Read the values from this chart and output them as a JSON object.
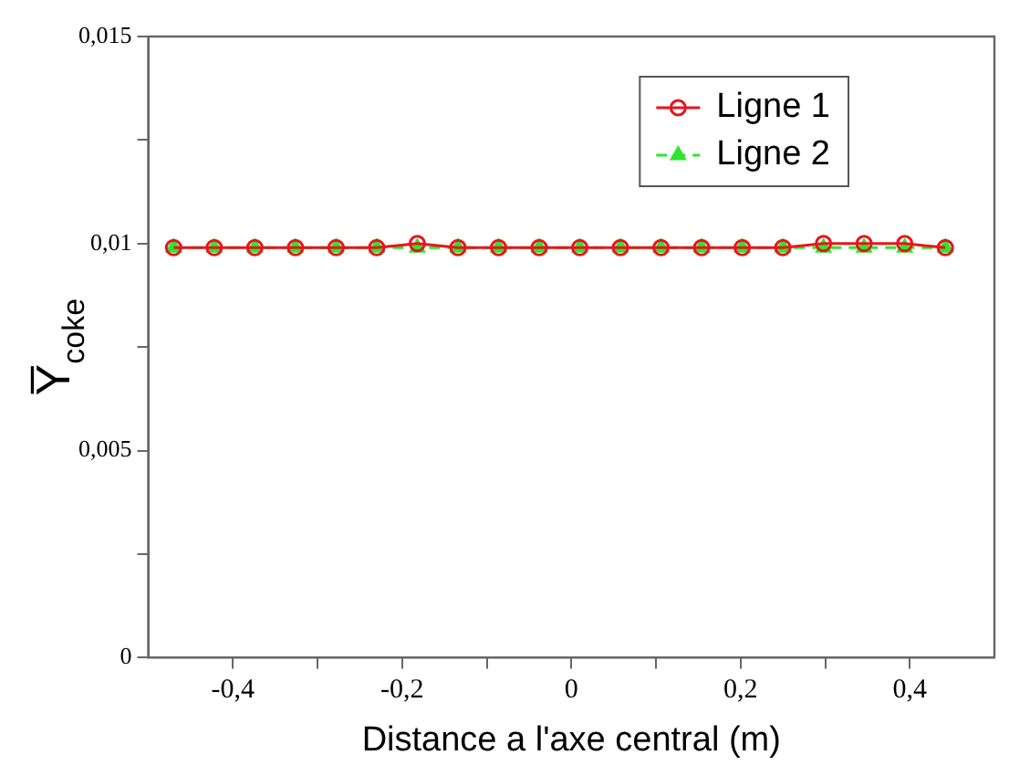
{
  "chart_data": {
    "type": "line",
    "xlabel": "Distance a l'axe central (m)",
    "ylabel": "Y̅$_{coke}$",
    "x": [
      -0.47,
      -0.422,
      -0.374,
      -0.326,
      -0.278,
      -0.23,
      -0.182,
      -0.134,
      -0.086,
      -0.038,
      0.01,
      0.058,
      0.106,
      0.154,
      0.202,
      0.25,
      0.298,
      0.346,
      0.394,
      0.442
    ],
    "series": [
      {
        "name": "Ligne 1",
        "color": "#e8141e",
        "marker": "circle",
        "values": [
          0.0099,
          0.0099,
          0.0099,
          0.0099,
          0.0099,
          0.0099,
          0.01,
          0.0099,
          0.0099,
          0.0099,
          0.0099,
          0.0099,
          0.0099,
          0.0099,
          0.0099,
          0.0099,
          0.01,
          0.01,
          0.01,
          0.0099
        ]
      },
      {
        "name": "Ligne 2",
        "color": "#2ee62e",
        "marker": "triangle",
        "line_style": "dashed",
        "values": [
          0.0099,
          0.0099,
          0.0099,
          0.0099,
          0.0099,
          0.0099,
          0.0099,
          0.0099,
          0.0099,
          0.0099,
          0.0099,
          0.0099,
          0.0099,
          0.0099,
          0.0099,
          0.0099,
          0.0099,
          0.0099,
          0.0099,
          0.0099
        ]
      }
    ],
    "xlim": [
      -0.5,
      0.5
    ],
    "xticks": [
      {
        "value": -0.4,
        "label": "-0,4"
      },
      {
        "value": -0.3,
        "label": null
      },
      {
        "value": -0.2,
        "label": "-0,2"
      },
      {
        "value": -0.1,
        "label": null
      },
      0,
      {
        "value": 0.1,
        "label": null
      },
      {
        "value": 0.2,
        "label": "0,2"
      },
      {
        "value": 0.3,
        "label": null
      },
      {
        "value": 0.4,
        "label": "0,4"
      }
    ],
    "ylim": [
      0,
      0.015
    ],
    "yticks": [
      0,
      {
        "value": 0.0025,
        "label": null
      },
      {
        "value": 0.005,
        "label": "0,005"
      },
      {
        "value": 0.0075,
        "label": null
      },
      {
        "value": 0.01,
        "label": "0,01"
      },
      {
        "value": 0.0125,
        "label": null
      },
      {
        "value": 0.015,
        "label": "0,015"
      }
    ],
    "grid": false,
    "legend": "top right"
  }
}
